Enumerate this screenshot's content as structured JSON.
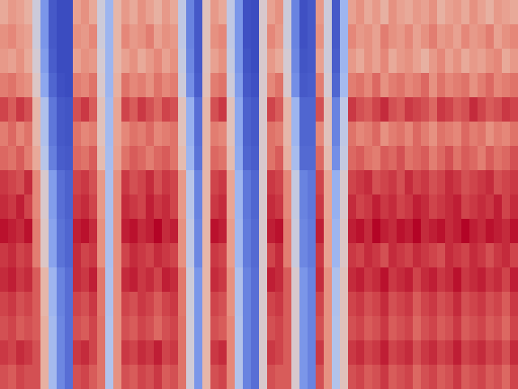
{
  "chart_data": {
    "type": "heatmap",
    "tick_labels": false,
    "cells": [
      [
        0.64,
        0.68,
        0.66,
        0.62,
        0.45,
        0.2,
        0.05,
        0.02,
        0.02,
        0.66,
        0.7,
        0.64,
        0.45,
        0.3,
        0.6,
        0.68,
        0.64,
        0.7,
        0.66,
        0.62,
        0.68,
        0.64,
        0.4,
        0.15,
        0.05,
        0.55,
        0.68,
        0.64,
        0.4,
        0.2,
        0.03,
        0.02,
        0.5,
        0.66,
        0.7,
        0.45,
        0.15,
        0.03,
        0.05,
        0.68,
        0.45,
        0.05,
        0.3,
        0.66,
        0.7,
        0.64,
        0.68,
        0.62,
        0.7,
        0.66,
        0.64,
        0.68,
        0.66,
        0.7,
        0.62,
        0.66,
        0.68,
        0.64,
        0.7,
        0.66,
        0.62,
        0.68,
        0.66,
        0.64
      ],
      [
        0.7,
        0.72,
        0.68,
        0.66,
        0.45,
        0.2,
        0.05,
        0.02,
        0.02,
        0.7,
        0.68,
        0.72,
        0.45,
        0.3,
        0.6,
        0.72,
        0.68,
        0.7,
        0.74,
        0.66,
        0.7,
        0.68,
        0.4,
        0.15,
        0.05,
        0.55,
        0.7,
        0.72,
        0.4,
        0.2,
        0.03,
        0.02,
        0.5,
        0.72,
        0.68,
        0.45,
        0.15,
        0.03,
        0.05,
        0.7,
        0.45,
        0.05,
        0.3,
        0.72,
        0.68,
        0.7,
        0.66,
        0.74,
        0.7,
        0.68,
        0.72,
        0.66,
        0.7,
        0.74,
        0.68,
        0.7,
        0.66,
        0.72,
        0.68,
        0.7,
        0.74,
        0.66,
        0.7,
        0.72
      ],
      [
        0.68,
        0.66,
        0.7,
        0.64,
        0.48,
        0.22,
        0.06,
        0.02,
        0.02,
        0.66,
        0.7,
        0.68,
        0.48,
        0.3,
        0.6,
        0.66,
        0.7,
        0.64,
        0.68,
        0.72,
        0.66,
        0.7,
        0.42,
        0.16,
        0.05,
        0.55,
        0.66,
        0.7,
        0.42,
        0.2,
        0.04,
        0.02,
        0.5,
        0.68,
        0.64,
        0.48,
        0.16,
        0.04,
        0.05,
        0.66,
        0.45,
        0.06,
        0.3,
        0.68,
        0.64,
        0.7,
        0.66,
        0.72,
        0.64,
        0.68,
        0.7,
        0.66,
        0.62,
        0.68,
        0.72,
        0.66,
        0.7,
        0.64,
        0.68,
        0.66,
        0.7,
        0.72,
        0.64,
        0.68
      ],
      [
        0.74,
        0.76,
        0.72,
        0.7,
        0.52,
        0.25,
        0.08,
        0.03,
        0.02,
        0.74,
        0.72,
        0.76,
        0.5,
        0.3,
        0.62,
        0.76,
        0.72,
        0.74,
        0.7,
        0.76,
        0.72,
        0.74,
        0.45,
        0.18,
        0.06,
        0.56,
        0.74,
        0.76,
        0.45,
        0.22,
        0.05,
        0.03,
        0.5,
        0.72,
        0.76,
        0.5,
        0.18,
        0.05,
        0.06,
        0.74,
        0.48,
        0.08,
        0.32,
        0.74,
        0.76,
        0.72,
        0.78,
        0.7,
        0.74,
        0.76,
        0.72,
        0.74,
        0.78,
        0.7,
        0.76,
        0.72,
        0.74,
        0.76,
        0.7,
        0.74,
        0.78,
        0.72,
        0.74,
        0.76
      ],
      [
        0.84,
        0.8,
        0.86,
        0.82,
        0.6,
        0.35,
        0.12,
        0.05,
        0.04,
        0.82,
        0.86,
        0.8,
        0.55,
        0.32,
        0.65,
        0.84,
        0.8,
        0.86,
        0.82,
        0.78,
        0.84,
        0.82,
        0.55,
        0.28,
        0.1,
        0.6,
        0.82,
        0.86,
        0.55,
        0.25,
        0.07,
        0.05,
        0.5,
        0.84,
        0.8,
        0.6,
        0.3,
        0.08,
        0.08,
        0.82,
        0.55,
        0.15,
        0.4,
        0.86,
        0.82,
        0.8,
        0.84,
        0.88,
        0.82,
        0.8,
        0.86,
        0.84,
        0.82,
        0.78,
        0.86,
        0.84,
        0.8,
        0.82,
        0.88,
        0.84,
        0.8,
        0.82,
        0.86,
        0.84
      ],
      [
        0.74,
        0.78,
        0.72,
        0.76,
        0.6,
        0.35,
        0.12,
        0.05,
        0.04,
        0.76,
        0.72,
        0.74,
        0.55,
        0.32,
        0.65,
        0.72,
        0.76,
        0.74,
        0.78,
        0.72,
        0.74,
        0.76,
        0.55,
        0.28,
        0.1,
        0.6,
        0.74,
        0.72,
        0.55,
        0.25,
        0.07,
        0.05,
        0.5,
        0.76,
        0.74,
        0.6,
        0.3,
        0.08,
        0.08,
        0.72,
        0.55,
        0.15,
        0.4,
        0.76,
        0.72,
        0.74,
        0.78,
        0.7,
        0.74,
        0.76,
        0.72,
        0.78,
        0.74,
        0.7,
        0.76,
        0.74,
        0.72,
        0.78,
        0.74,
        0.76,
        0.7,
        0.74,
        0.72,
        0.76
      ],
      [
        0.78,
        0.76,
        0.8,
        0.74,
        0.64,
        0.38,
        0.14,
        0.06,
        0.05,
        0.78,
        0.76,
        0.8,
        0.58,
        0.33,
        0.66,
        0.76,
        0.8,
        0.78,
        0.74,
        0.78,
        0.8,
        0.76,
        0.58,
        0.3,
        0.11,
        0.6,
        0.78,
        0.76,
        0.58,
        0.26,
        0.08,
        0.06,
        0.5,
        0.76,
        0.8,
        0.62,
        0.33,
        0.09,
        0.09,
        0.78,
        0.58,
        0.18,
        0.42,
        0.78,
        0.8,
        0.76,
        0.74,
        0.8,
        0.78,
        0.82,
        0.76,
        0.78,
        0.8,
        0.74,
        0.78,
        0.82,
        0.76,
        0.8,
        0.78,
        0.74,
        0.8,
        0.76,
        0.78,
        0.82
      ],
      [
        0.86,
        0.84,
        0.82,
        0.88,
        0.72,
        0.5,
        0.22,
        0.1,
        0.07,
        0.84,
        0.86,
        0.82,
        0.68,
        0.34,
        0.7,
        0.86,
        0.82,
        0.84,
        0.88,
        0.82,
        0.86,
        0.84,
        0.68,
        0.38,
        0.15,
        0.6,
        0.84,
        0.86,
        0.65,
        0.3,
        0.12,
        0.08,
        0.5,
        0.86,
        0.84,
        0.72,
        0.42,
        0.15,
        0.12,
        0.84,
        0.65,
        0.28,
        0.5,
        0.84,
        0.86,
        0.88,
        0.82,
        0.84,
        0.86,
        0.82,
        0.88,
        0.84,
        0.86,
        0.82,
        0.84,
        0.88,
        0.86,
        0.82,
        0.84,
        0.86,
        0.88,
        0.82,
        0.84,
        0.86
      ],
      [
        0.88,
        0.86,
        0.9,
        0.84,
        0.72,
        0.5,
        0.22,
        0.1,
        0.07,
        0.86,
        0.88,
        0.84,
        0.68,
        0.34,
        0.7,
        0.88,
        0.86,
        0.84,
        0.9,
        0.86,
        0.88,
        0.84,
        0.68,
        0.38,
        0.15,
        0.6,
        0.86,
        0.88,
        0.65,
        0.3,
        0.12,
        0.08,
        0.5,
        0.88,
        0.86,
        0.72,
        0.42,
        0.15,
        0.12,
        0.86,
        0.65,
        0.28,
        0.5,
        0.88,
        0.84,
        0.86,
        0.9,
        0.86,
        0.88,
        0.84,
        0.86,
        0.9,
        0.88,
        0.84,
        0.86,
        0.88,
        0.9,
        0.84,
        0.86,
        0.88,
        0.86,
        0.9,
        0.84,
        0.88
      ],
      [
        0.92,
        0.9,
        0.88,
        0.92,
        0.74,
        0.52,
        0.24,
        0.11,
        0.08,
        0.9,
        0.92,
        0.88,
        0.7,
        0.34,
        0.7,
        0.9,
        0.92,
        0.88,
        0.9,
        0.94,
        0.88,
        0.9,
        0.7,
        0.4,
        0.16,
        0.6,
        0.92,
        0.9,
        0.67,
        0.31,
        0.13,
        0.09,
        0.5,
        0.9,
        0.92,
        0.74,
        0.44,
        0.16,
        0.13,
        0.9,
        0.66,
        0.3,
        0.52,
        0.9,
        0.92,
        0.88,
        0.94,
        0.9,
        0.88,
        0.92,
        0.9,
        0.94,
        0.88,
        0.9,
        0.92,
        0.88,
        0.9,
        0.94,
        0.9,
        0.88,
        0.92,
        0.9,
        0.88,
        0.92
      ],
      [
        0.86,
        0.88,
        0.84,
        0.86,
        0.74,
        0.52,
        0.24,
        0.11,
        0.08,
        0.88,
        0.84,
        0.86,
        0.7,
        0.34,
        0.7,
        0.84,
        0.88,
        0.86,
        0.84,
        0.88,
        0.86,
        0.84,
        0.7,
        0.4,
        0.16,
        0.6,
        0.86,
        0.84,
        0.67,
        0.31,
        0.13,
        0.09,
        0.5,
        0.84,
        0.88,
        0.74,
        0.44,
        0.16,
        0.13,
        0.86,
        0.66,
        0.3,
        0.52,
        0.86,
        0.84,
        0.88,
        0.86,
        0.82,
        0.88,
        0.86,
        0.84,
        0.88,
        0.86,
        0.84,
        0.82,
        0.88,
        0.86,
        0.84,
        0.88,
        0.86,
        0.82,
        0.86,
        0.88,
        0.84
      ],
      [
        0.88,
        0.9,
        0.86,
        0.88,
        0.8,
        0.6,
        0.3,
        0.15,
        0.1,
        0.88,
        0.86,
        0.9,
        0.75,
        0.35,
        0.7,
        0.88,
        0.9,
        0.86,
        0.88,
        0.84,
        0.9,
        0.88,
        0.75,
        0.45,
        0.2,
        0.6,
        0.88,
        0.86,
        0.7,
        0.35,
        0.15,
        0.1,
        0.5,
        0.9,
        0.88,
        0.8,
        0.5,
        0.2,
        0.15,
        0.88,
        0.7,
        0.35,
        0.55,
        0.88,
        0.9,
        0.86,
        0.88,
        0.92,
        0.86,
        0.88,
        0.9,
        0.84,
        0.88,
        0.9,
        0.86,
        0.88,
        0.92,
        0.86,
        0.88,
        0.9,
        0.86,
        0.88,
        0.84,
        0.9
      ],
      [
        0.84,
        0.86,
        0.82,
        0.84,
        0.8,
        0.6,
        0.3,
        0.15,
        0.1,
        0.84,
        0.82,
        0.86,
        0.75,
        0.35,
        0.7,
        0.84,
        0.82,
        0.86,
        0.84,
        0.8,
        0.84,
        0.86,
        0.75,
        0.45,
        0.2,
        0.6,
        0.84,
        0.82,
        0.7,
        0.35,
        0.15,
        0.1,
        0.5,
        0.84,
        0.86,
        0.8,
        0.5,
        0.2,
        0.15,
        0.84,
        0.7,
        0.35,
        0.55,
        0.84,
        0.86,
        0.82,
        0.84,
        0.88,
        0.82,
        0.84,
        0.86,
        0.8,
        0.84,
        0.86,
        0.82,
        0.84,
        0.88,
        0.82,
        0.84,
        0.86,
        0.82,
        0.84,
        0.8,
        0.86
      ],
      [
        0.82,
        0.84,
        0.8,
        0.82,
        0.8,
        0.62,
        0.32,
        0.16,
        0.1,
        0.82,
        0.8,
        0.84,
        0.76,
        0.36,
        0.7,
        0.82,
        0.8,
        0.84,
        0.82,
        0.78,
        0.82,
        0.84,
        0.76,
        0.46,
        0.2,
        0.6,
        0.82,
        0.8,
        0.72,
        0.36,
        0.15,
        0.1,
        0.5,
        0.82,
        0.84,
        0.8,
        0.5,
        0.2,
        0.15,
        0.82,
        0.7,
        0.36,
        0.55,
        0.82,
        0.84,
        0.8,
        0.82,
        0.86,
        0.8,
        0.82,
        0.84,
        0.78,
        0.82,
        0.84,
        0.8,
        0.82,
        0.86,
        0.8,
        0.82,
        0.84,
        0.8,
        0.82,
        0.78,
        0.84
      ],
      [
        0.86,
        0.84,
        0.88,
        0.86,
        0.82,
        0.62,
        0.32,
        0.16,
        0.1,
        0.86,
        0.88,
        0.84,
        0.76,
        0.36,
        0.7,
        0.86,
        0.84,
        0.88,
        0.86,
        0.9,
        0.84,
        0.86,
        0.76,
        0.46,
        0.2,
        0.6,
        0.86,
        0.88,
        0.72,
        0.36,
        0.15,
        0.1,
        0.5,
        0.86,
        0.84,
        0.8,
        0.5,
        0.2,
        0.15,
        0.86,
        0.7,
        0.36,
        0.55,
        0.86,
        0.88,
        0.84,
        0.86,
        0.9,
        0.84,
        0.86,
        0.88,
        0.82,
        0.86,
        0.88,
        0.84,
        0.86,
        0.9,
        0.84,
        0.86,
        0.88,
        0.84,
        0.86,
        0.82,
        0.88
      ],
      [
        0.82,
        0.8,
        0.84,
        0.82,
        0.82,
        0.62,
        0.32,
        0.16,
        0.1,
        0.82,
        0.84,
        0.8,
        0.76,
        0.36,
        0.7,
        0.82,
        0.8,
        0.84,
        0.82,
        0.86,
        0.8,
        0.82,
        0.76,
        0.46,
        0.2,
        0.6,
        0.82,
        0.84,
        0.72,
        0.36,
        0.15,
        0.1,
        0.5,
        0.82,
        0.8,
        0.8,
        0.5,
        0.2,
        0.15,
        0.82,
        0.7,
        0.36,
        0.55,
        0.82,
        0.84,
        0.8,
        0.82,
        0.86,
        0.8,
        0.82,
        0.84,
        0.78,
        0.82,
        0.84,
        0.8,
        0.82,
        0.86,
        0.8,
        0.82,
        0.84,
        0.8,
        0.82,
        0.78,
        0.84
      ]
    ]
  }
}
